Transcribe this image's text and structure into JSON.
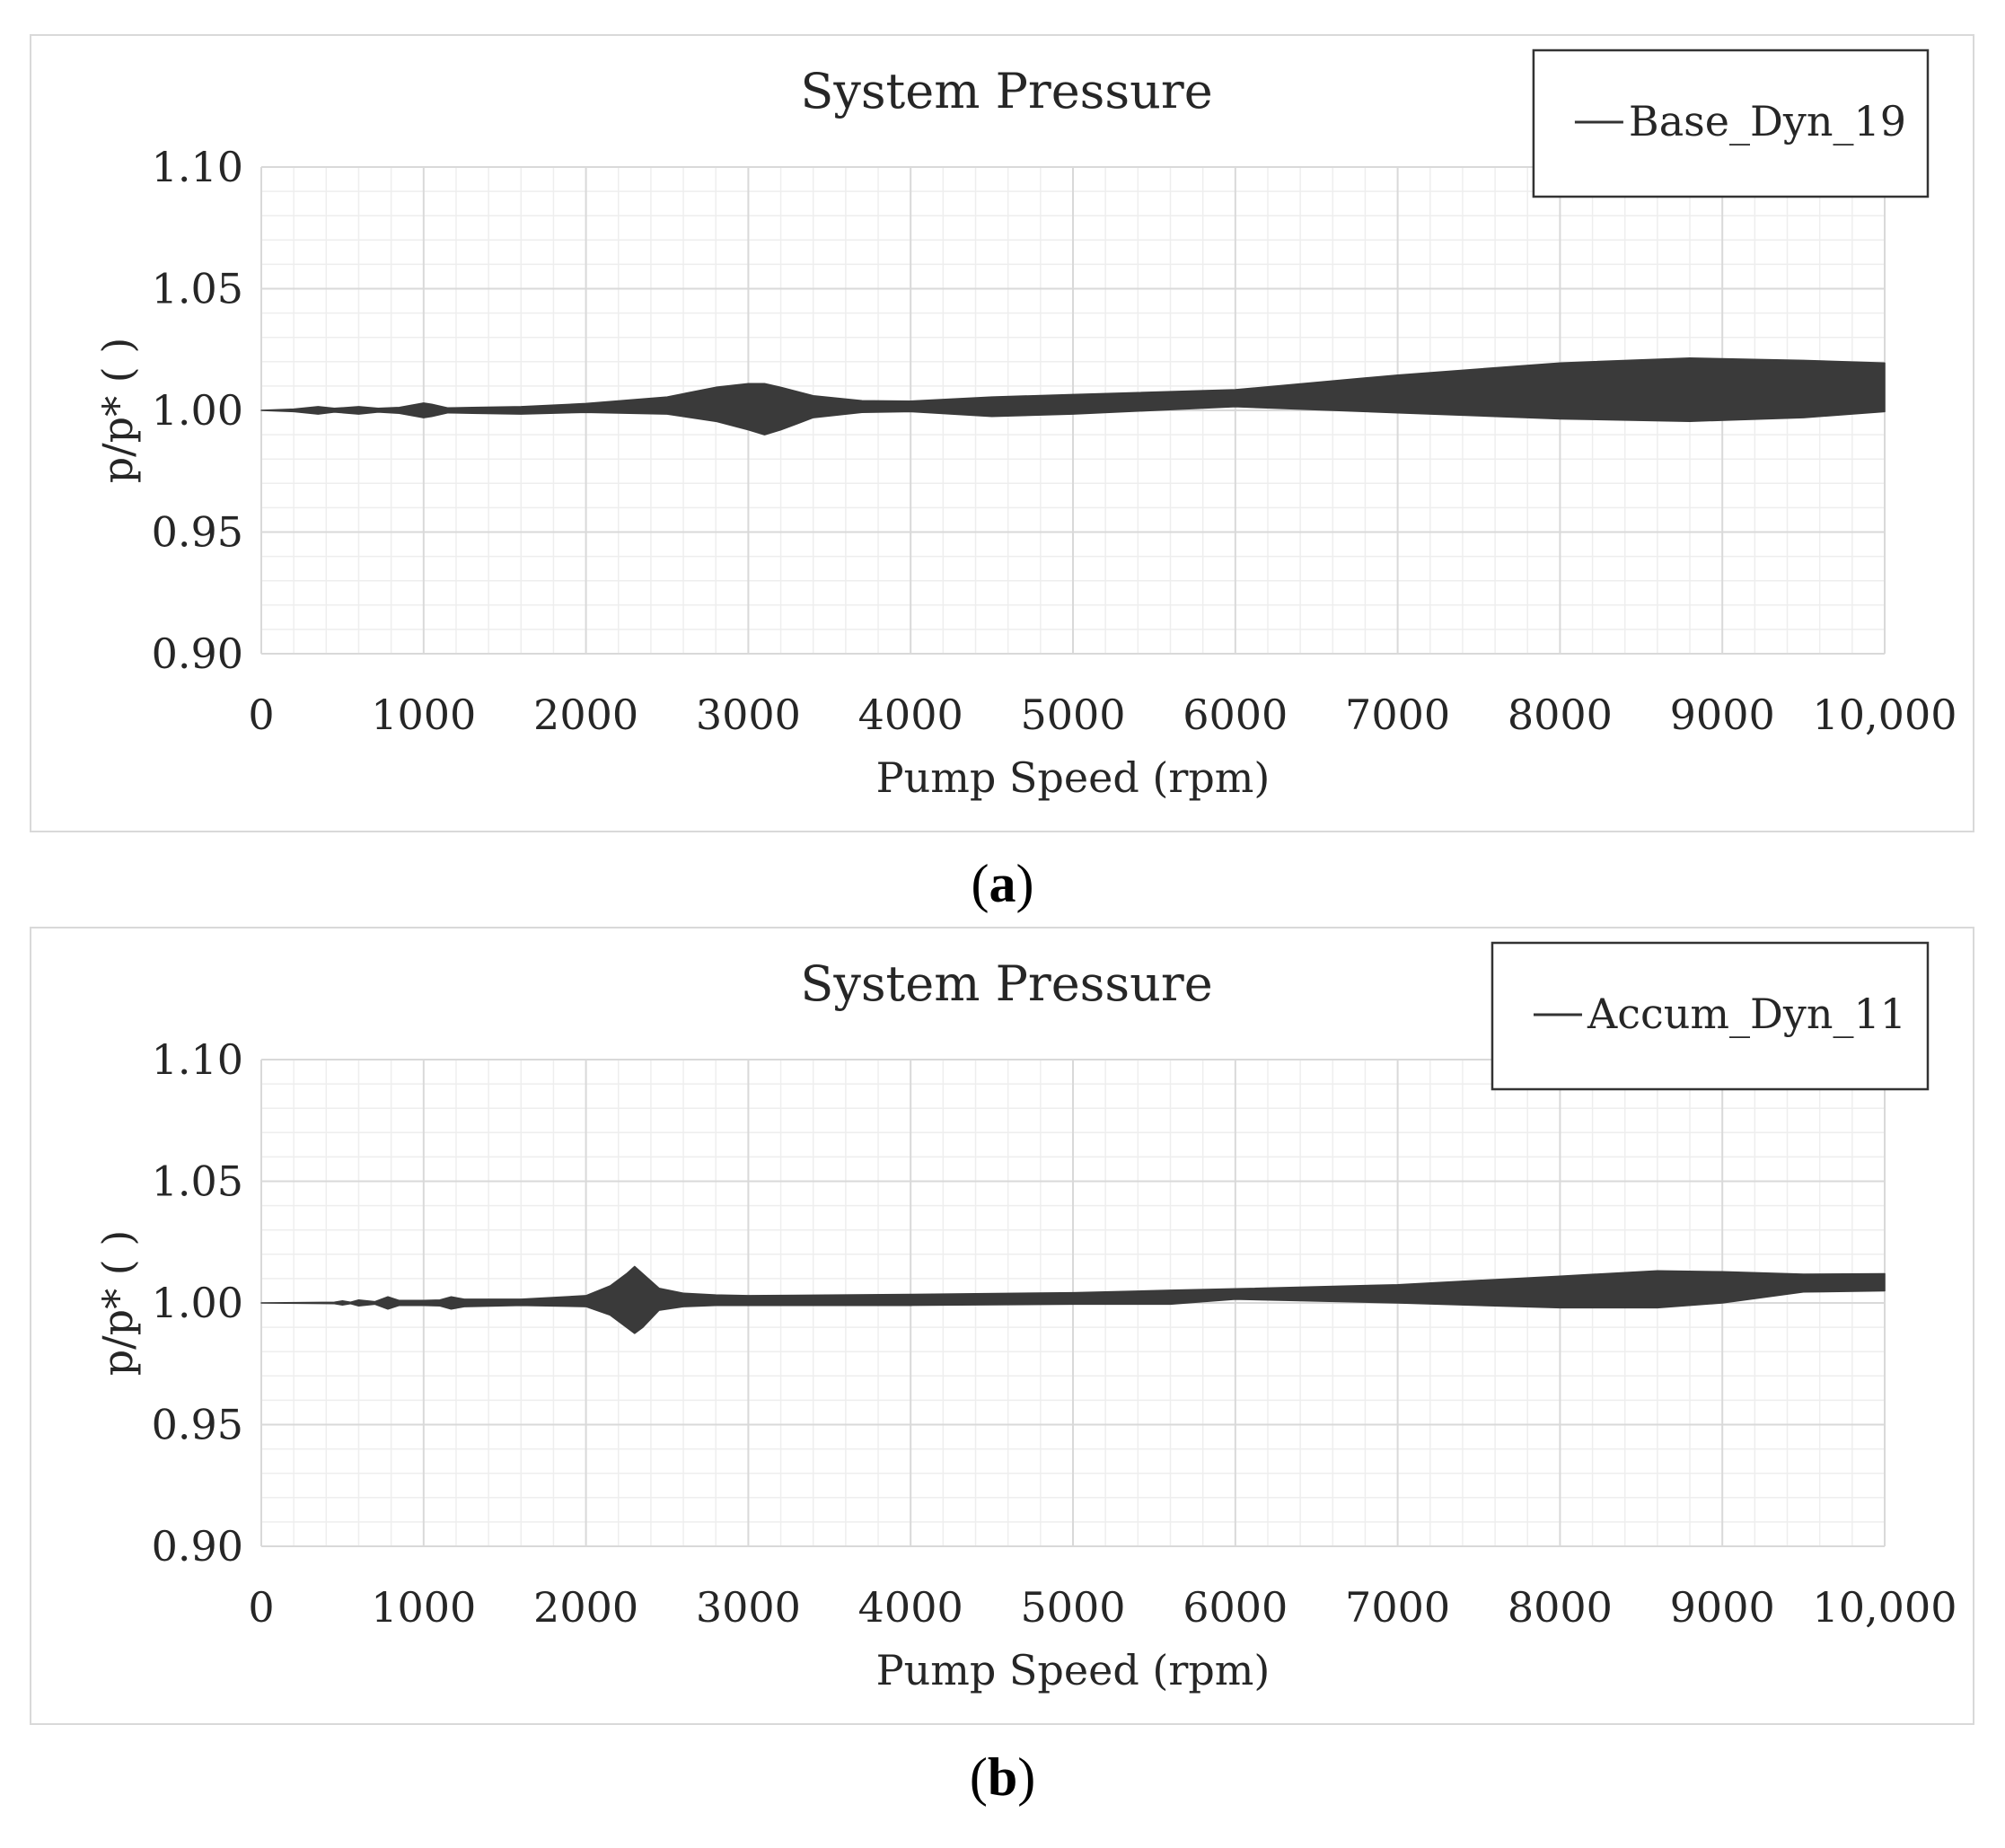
{
  "colors": {
    "band": "#3a3a3a",
    "grid": "#d9d9d9",
    "minor_grid": "#eeeeee",
    "text": "#262626",
    "border": "#d9d9d9"
  },
  "chart_data": [
    {
      "type": "area",
      "title": "System Pressure",
      "xlabel": "Pump Speed (rpm)",
      "ylabel": "p/p* ( )",
      "xlim": [
        0,
        10000
      ],
      "ylim": [
        0.9,
        1.1
      ],
      "x_ticks": [
        0,
        1000,
        2000,
        3000,
        4000,
        5000,
        6000,
        7000,
        8000,
        9000,
        10000
      ],
      "x_tick_labels": [
        "0",
        "1000",
        "2000",
        "3000",
        "4000",
        "5000",
        "6000",
        "7000",
        "8000",
        "9000",
        "10,000"
      ],
      "y_ticks": [
        1.1,
        1.05,
        1.0,
        0.95,
        0.9
      ],
      "y_tick_labels": [
        "1.10",
        "1.05",
        "1.00",
        "0.95",
        "0.90"
      ],
      "grid": true,
      "legend_position": "top-right",
      "series": [
        {
          "name": "Base_Dyn_19",
          "x": [
            0,
            200,
            350,
            450,
            600,
            720,
            850,
            1000,
            1050,
            1150,
            1300,
            1600,
            2000,
            2500,
            2800,
            3000,
            3100,
            3200,
            3400,
            3700,
            4000,
            4500,
            5000,
            6000,
            7000,
            8000,
            8800,
            9500,
            10000
          ],
          "upper": [
            1.0,
            1.0005,
            1.0015,
            1.0008,
            1.0015,
            1.0008,
            1.0012,
            1.003,
            1.0025,
            1.001,
            1.0012,
            1.0015,
            1.0028,
            1.0055,
            1.0095,
            1.011,
            1.011,
            1.0095,
            1.006,
            1.004,
            1.0038,
            1.0055,
            1.0065,
            1.0085,
            1.0145,
            1.0195,
            1.0215,
            1.0205,
            1.0195
          ],
          "lower": [
            1.0,
            0.9995,
            0.9985,
            0.9993,
            0.9985,
            0.9993,
            0.9988,
            0.997,
            0.9975,
            0.999,
            0.9988,
            0.9985,
            0.9992,
            0.9985,
            0.9955,
            0.992,
            0.99,
            0.992,
            0.997,
            0.9992,
            0.9995,
            0.9975,
            0.9985,
            1.0015,
            0.999,
            0.9965,
            0.9955,
            0.997,
            0.9995
          ]
        }
      ]
    },
    {
      "type": "area",
      "title": "System Pressure",
      "xlabel": "Pump Speed (rpm)",
      "ylabel": "p/p* ( )",
      "xlim": [
        0,
        10000
      ],
      "ylim": [
        0.9,
        1.1
      ],
      "x_ticks": [
        0,
        1000,
        2000,
        3000,
        4000,
        5000,
        6000,
        7000,
        8000,
        9000,
        10000
      ],
      "x_tick_labels": [
        "0",
        "1000",
        "2000",
        "3000",
        "4000",
        "5000",
        "6000",
        "7000",
        "8000",
        "9000",
        "10,000"
      ],
      "y_ticks": [
        1.1,
        1.05,
        1.0,
        0.95,
        0.9
      ],
      "y_tick_labels": [
        "1.10",
        "1.05",
        "1.00",
        "0.95",
        "0.90"
      ],
      "grid": true,
      "legend_position": "top-right",
      "series": [
        {
          "name": "Accum_Dyn_11",
          "x": [
            0,
            450,
            500,
            550,
            600,
            700,
            780,
            850,
            1000,
            1100,
            1170,
            1250,
            1600,
            2000,
            2150,
            2250,
            2300,
            2350,
            2450,
            2600,
            2800,
            3000,
            4000,
            5000,
            5600,
            6000,
            7000,
            8000,
            8600,
            9000,
            9500,
            10000
          ],
          "upper": [
            1.0,
            1.0003,
            1.0008,
            1.0003,
            1.0012,
            1.0005,
            1.0025,
            1.001,
            1.001,
            1.0012,
            1.0025,
            1.0015,
            1.0015,
            1.003,
            1.007,
            1.012,
            1.015,
            1.012,
            1.006,
            1.004,
            1.0033,
            1.003,
            1.0035,
            1.0042,
            1.0052,
            1.0058,
            1.0075,
            1.011,
            1.0132,
            1.0128,
            1.0118,
            1.012
          ],
          "lower": [
            1.0,
            0.9997,
            0.9992,
            0.9997,
            0.9988,
            0.9995,
            0.9975,
            0.999,
            0.999,
            0.9988,
            0.9975,
            0.9985,
            0.999,
            0.9985,
            0.995,
            0.99,
            0.9875,
            0.99,
            0.997,
            0.9985,
            0.999,
            0.999,
            0.999,
            0.9995,
            0.9995,
            1.0015,
            1.0,
            0.998,
            0.998,
            1.0,
            1.0045,
            1.005
          ]
        }
      ]
    }
  ],
  "captions": {
    "a": "a",
    "b": "b"
  }
}
